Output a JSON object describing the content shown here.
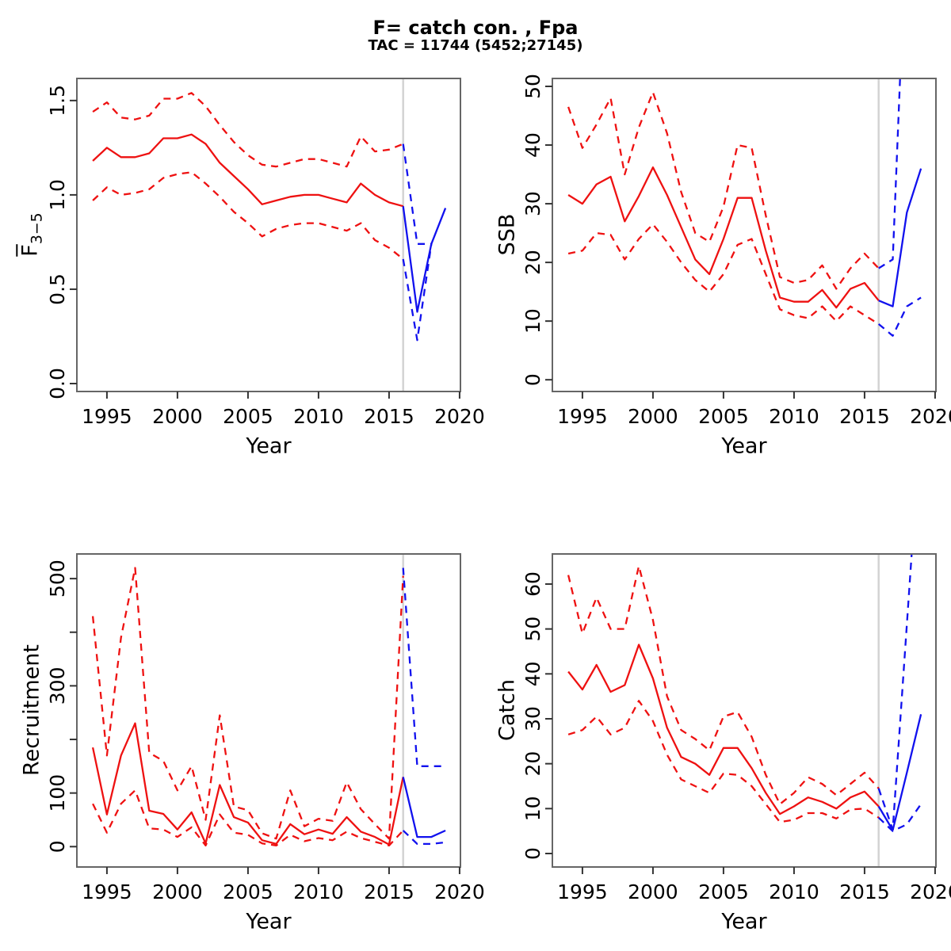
{
  "header": {
    "title": "F= catch con. , Fpa",
    "subtitle": "TAC = 11744 (5452;27145)"
  },
  "colors": {
    "history_red": "#ee1111",
    "forecast_blue": "#1111ee",
    "divider_gray": "#d3d3d3",
    "axis_box": "#666666",
    "tick": "#333333",
    "text": "#000000"
  },
  "chart_data": [
    {
      "type": "line",
      "name": "fbar",
      "xlabel": "Year",
      "ylabel": "F",
      "ylabel_sub": "3−5",
      "xlim": [
        1992.87,
        2020.06
      ],
      "ylim": [
        -0.042,
        1.617
      ],
      "xticks": [
        1995,
        2000,
        2005,
        2010,
        2015,
        2020
      ],
      "yticks": [
        0,
        0.5,
        1.0,
        1.5
      ],
      "ytick_labels": [
        "0.0",
        "0.5",
        "1.0",
        "1.5"
      ],
      "vline": 2016,
      "grid": false,
      "series": [
        {
          "name": "f-median-history",
          "role": "history",
          "dash": false,
          "x": [
            1994,
            1995,
            1996,
            1997,
            1998,
            1999,
            2000,
            2001,
            2002,
            2003,
            2004,
            2005,
            2006,
            2007,
            2008,
            2009,
            2010,
            2011,
            2012,
            2013,
            2014,
            2015,
            2016
          ],
          "y": [
            1.18,
            1.25,
            1.2,
            1.2,
            1.22,
            1.3,
            1.3,
            1.32,
            1.27,
            1.17,
            1.1,
            1.03,
            0.95,
            0.97,
            0.99,
            1.0,
            1.0,
            0.98,
            0.96,
            1.06,
            1.0,
            0.96,
            0.94
          ]
        },
        {
          "name": "f-upper-ci-history",
          "role": "history",
          "dash": true,
          "x": [
            1994,
            1995,
            1996,
            1997,
            1998,
            1999,
            2000,
            2001,
            2002,
            2003,
            2004,
            2005,
            2006,
            2007,
            2008,
            2009,
            2010,
            2011,
            2012,
            2013,
            2014,
            2015,
            2016
          ],
          "y": [
            1.44,
            1.49,
            1.41,
            1.4,
            1.42,
            1.51,
            1.51,
            1.54,
            1.47,
            1.37,
            1.28,
            1.21,
            1.16,
            1.15,
            1.17,
            1.19,
            1.19,
            1.17,
            1.15,
            1.31,
            1.23,
            1.24,
            1.27
          ]
        },
        {
          "name": "f-lower-ci-history",
          "role": "history",
          "dash": true,
          "x": [
            1994,
            1995,
            1996,
            1997,
            1998,
            1999,
            2000,
            2001,
            2002,
            2003,
            2004,
            2005,
            2006,
            2007,
            2008,
            2009,
            2010,
            2011,
            2012,
            2013,
            2014,
            2015,
            2016
          ],
          "y": [
            0.97,
            1.04,
            1.0,
            1.01,
            1.03,
            1.09,
            1.11,
            1.12,
            1.06,
            0.99,
            0.91,
            0.85,
            0.78,
            0.82,
            0.84,
            0.85,
            0.85,
            0.83,
            0.81,
            0.85,
            0.76,
            0.72,
            0.66
          ]
        },
        {
          "name": "f-upper-ci-forecast",
          "role": "forecast",
          "dash": true,
          "x": [
            2016,
            2017,
            2018
          ],
          "y": [
            1.27,
            0.74,
            0.74
          ]
        },
        {
          "name": "f-lower-ci-forecast",
          "role": "forecast",
          "dash": true,
          "x": [
            2016,
            2017,
            2018
          ],
          "y": [
            0.66,
            0.23,
            0.74
          ]
        },
        {
          "name": "f-median-forecast",
          "role": "forecast",
          "dash": false,
          "x": [
            2016,
            2017,
            2018,
            2019
          ],
          "y": [
            0.94,
            0.38,
            0.74,
            0.93
          ]
        }
      ]
    },
    {
      "type": "line",
      "name": "ssb",
      "xlabel": "Year",
      "ylabel": "SSB",
      "xlim": [
        1992.87,
        2020.06
      ],
      "ylim": [
        -2,
        51.35
      ],
      "xticks": [
        1995,
        2000,
        2005,
        2010,
        2015,
        2020
      ],
      "yticks": [
        0,
        10,
        20,
        30,
        40,
        50
      ],
      "ytick_labels": [
        "0",
        "10",
        "20",
        "30",
        "40",
        "50"
      ],
      "vline": 2016,
      "grid": false,
      "series": [
        {
          "name": "ssb-median-history",
          "role": "history",
          "dash": false,
          "x": [
            1994,
            1995,
            1996,
            1997,
            1998,
            1999,
            2000,
            2001,
            2002,
            2003,
            2004,
            2005,
            2006,
            2007,
            2008,
            2009,
            2010,
            2011,
            2012,
            2013,
            2014,
            2015,
            2016
          ],
          "y": [
            31.5,
            30,
            33.3,
            34.6,
            27,
            31.3,
            36.2,
            31.5,
            26,
            20.5,
            18,
            24,
            31,
            31,
            22,
            14,
            13.3,
            13.3,
            15.3,
            12.3,
            15.5,
            16.5,
            13.5
          ]
        },
        {
          "name": "ssb-upper-ci-history",
          "role": "history",
          "dash": true,
          "x": [
            1994,
            1995,
            1996,
            1997,
            1998,
            1999,
            2000,
            2001,
            2002,
            2003,
            2004,
            2005,
            2006,
            2007,
            2008,
            2009,
            2010,
            2011,
            2012,
            2013,
            2014,
            2015,
            2016
          ],
          "y": [
            46.5,
            39.5,
            43.5,
            48,
            35,
            43,
            49,
            42,
            32,
            25,
            23.5,
            29.5,
            40,
            39.5,
            28,
            17.5,
            16.5,
            17,
            19.5,
            15.5,
            19,
            21.5,
            19
          ]
        },
        {
          "name": "ssb-lower-ci-history",
          "role": "history",
          "dash": true,
          "x": [
            1994,
            1995,
            1996,
            1997,
            1998,
            1999,
            2000,
            2001,
            2002,
            2003,
            2004,
            2005,
            2006,
            2007,
            2008,
            2009,
            2010,
            2011,
            2012,
            2013,
            2014,
            2015,
            2016
          ],
          "y": [
            21.5,
            22,
            25,
            24.7,
            20.5,
            24,
            26.5,
            23.5,
            20,
            17,
            15,
            18,
            23,
            24,
            18,
            12,
            11,
            10.5,
            12.5,
            10,
            12.5,
            11,
            9.5
          ]
        },
        {
          "name": "ssb-upper-ci-forecast",
          "role": "forecast",
          "dash": true,
          "x": [
            2016,
            2017,
            2018
          ],
          "y": [
            19,
            20.5,
            80
          ]
        },
        {
          "name": "ssb-lower-ci-forecast",
          "role": "forecast",
          "dash": true,
          "x": [
            2016,
            2017,
            2018,
            2019
          ],
          "y": [
            9.5,
            7.5,
            12.5,
            14
          ]
        },
        {
          "name": "ssb-median-forecast",
          "role": "forecast",
          "dash": false,
          "x": [
            2016,
            2017,
            2018,
            2019
          ],
          "y": [
            13.5,
            12.5,
            28.5,
            36
          ]
        }
      ]
    },
    {
      "type": "line",
      "name": "recruitment",
      "xlabel": "Year",
      "ylabel": "Recruitment",
      "xlim": [
        1992.87,
        2020.06
      ],
      "ylim": [
        -38,
        546
      ],
      "xticks": [
        1995,
        2000,
        2005,
        2010,
        2015,
        2020
      ],
      "yticks": [
        0,
        100,
        200,
        300,
        400,
        500
      ],
      "ytick_labels": [
        "0",
        "100",
        "",
        "300",
        "",
        "500"
      ],
      "vline": 2016,
      "grid": false,
      "series": [
        {
          "name": "rec-median-history",
          "role": "history",
          "dash": false,
          "x": [
            1994,
            1995,
            1996,
            1997,
            1998,
            1999,
            2000,
            2001,
            2002,
            2003,
            2004,
            2005,
            2006,
            2007,
            2008,
            2009,
            2010,
            2011,
            2012,
            2013,
            2014,
            2015,
            2016
          ],
          "y": [
            185,
            60,
            170,
            230,
            67,
            61,
            32,
            64,
            6,
            115,
            55,
            45,
            12,
            5,
            42,
            23,
            32,
            24,
            55,
            28,
            18,
            4,
            130
          ]
        },
        {
          "name": "rec-upper-ci-history",
          "role": "history",
          "dash": true,
          "x": [
            1994,
            1995,
            1996,
            1997,
            1998,
            1999,
            2000,
            2001,
            2002,
            2003,
            2004,
            2005,
            2006,
            2007,
            2008,
            2009,
            2010,
            2011,
            2012,
            2013,
            2014,
            2015,
            2016
          ],
          "y": [
            430,
            170,
            390,
            520,
            175,
            160,
            105,
            150,
            50,
            245,
            75,
            68,
            25,
            15,
            105,
            38,
            52,
            48,
            120,
            70,
            42,
            15,
            505
          ]
        },
        {
          "name": "rec-lower-ci-history",
          "role": "history",
          "dash": true,
          "x": [
            1994,
            1995,
            1996,
            1997,
            1998,
            1999,
            2000,
            2001,
            2002,
            2003,
            2004,
            2005,
            2006,
            2007,
            2008,
            2009,
            2010,
            2011,
            2012,
            2013,
            2014,
            2015,
            2016
          ],
          "y": [
            80,
            26,
            80,
            105,
            34,
            32,
            18,
            36,
            2,
            60,
            26,
            22,
            6,
            2,
            22,
            10,
            16,
            12,
            28,
            16,
            9,
            2,
            30
          ]
        },
        {
          "name": "rec-upper-ci-forecast",
          "role": "forecast",
          "dash": true,
          "x": [
            2016,
            2017,
            2018,
            2019
          ],
          "y": [
            520,
            150,
            150,
            150
          ]
        },
        {
          "name": "rec-lower-ci-forecast",
          "role": "forecast",
          "dash": true,
          "x": [
            2016,
            2017,
            2018,
            2019
          ],
          "y": [
            30,
            5,
            5,
            8
          ]
        },
        {
          "name": "rec-median-forecast",
          "role": "forecast",
          "dash": false,
          "x": [
            2016,
            2017,
            2018,
            2019
          ],
          "y": [
            130,
            18,
            18,
            30
          ]
        }
      ]
    },
    {
      "type": "line",
      "name": "catch",
      "xlabel": "Year",
      "ylabel": "Catch",
      "xlim": [
        1992.87,
        2020.06
      ],
      "ylim": [
        -3,
        66.7
      ],
      "xticks": [
        1995,
        2000,
        2005,
        2010,
        2015,
        2020
      ],
      "yticks": [
        0,
        10,
        20,
        30,
        40,
        50,
        60
      ],
      "ytick_labels": [
        "0",
        "10",
        "20",
        "30",
        "40",
        "50",
        "60"
      ],
      "vline": 2016,
      "grid": false,
      "series": [
        {
          "name": "catch-median-history",
          "role": "history",
          "dash": false,
          "x": [
            1994,
            1995,
            1996,
            1997,
            1998,
            1999,
            2000,
            2001,
            2002,
            2003,
            2004,
            2005,
            2006,
            2007,
            2008,
            2009,
            2010,
            2011,
            2012,
            2013,
            2014,
            2015,
            2016
          ],
          "y": [
            40.5,
            36.5,
            42,
            36,
            37.5,
            46.5,
            39,
            28,
            21.5,
            20,
            17.5,
            23.5,
            23.5,
            19,
            13.5,
            8.8,
            10.5,
            12.5,
            11.5,
            10,
            12.5,
            13.8,
            10.5
          ]
        },
        {
          "name": "catch-upper-ci-history",
          "role": "history",
          "dash": true,
          "x": [
            1994,
            1995,
            1996,
            1997,
            1998,
            1999,
            2000,
            2001,
            2002,
            2003,
            2004,
            2005,
            2006,
            2007,
            2008,
            2009,
            2010,
            2011,
            2012,
            2013,
            2014,
            2015,
            2016
          ],
          "y": [
            62,
            49,
            57,
            50,
            50,
            64,
            52,
            35,
            27.5,
            25.5,
            23,
            30.5,
            31.5,
            26,
            17.5,
            11,
            13.5,
            17,
            15.5,
            13,
            15.5,
            18,
            14.5
          ]
        },
        {
          "name": "catch-lower-ci-history",
          "role": "history",
          "dash": true,
          "x": [
            1994,
            1995,
            1996,
            1997,
            1998,
            1999,
            2000,
            2001,
            2002,
            2003,
            2004,
            2005,
            2006,
            2007,
            2008,
            2009,
            2010,
            2011,
            2012,
            2013,
            2014,
            2015,
            2016
          ],
          "y": [
            26.5,
            27.5,
            30.5,
            26.5,
            28,
            34,
            29.5,
            22,
            16.5,
            15,
            13.5,
            17.8,
            17.5,
            15,
            11,
            7,
            7.5,
            9,
            9,
            7.8,
            9.8,
            10,
            8
          ]
        },
        {
          "name": "catch-upper-ci-forecast",
          "role": "forecast",
          "dash": true,
          "x": [
            2016,
            2017,
            2018,
            2019
          ],
          "y": [
            14.5,
            5.3,
            51,
            97
          ]
        },
        {
          "name": "catch-lower-ci-forecast",
          "role": "forecast",
          "dash": true,
          "x": [
            2016,
            2017,
            2018,
            2019
          ],
          "y": [
            8,
            5,
            6.5,
            11
          ]
        },
        {
          "name": "catch-median-forecast",
          "role": "forecast",
          "dash": false,
          "x": [
            2016,
            2017,
            2018,
            2019
          ],
          "y": [
            10.5,
            5.2,
            18,
            31
          ]
        }
      ]
    }
  ]
}
